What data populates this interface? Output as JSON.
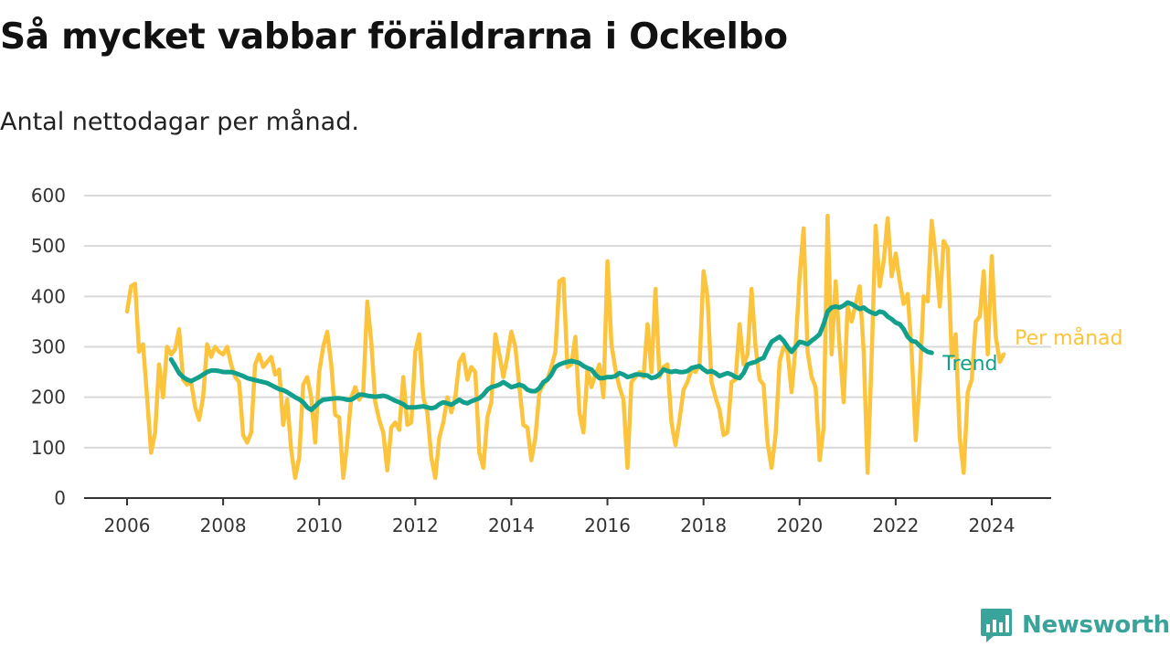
{
  "title": "Så mycket vabbar föräldrarna i Ockelbo",
  "subtitle": "Antal nettodagar per månad.",
  "brand": {
    "name": "Newsworthy",
    "icon": "newsworthy-chart-bubble-icon"
  },
  "colors": {
    "monthly": "#fcc33c",
    "trend": "#12a08c",
    "grid": "#d9d9d9",
    "axis": "#333333",
    "brand": "#3aa39a"
  },
  "chart_data": {
    "type": "line",
    "title": "Så mycket vabbar föräldrarna i Ockelbo",
    "subtitle": "Antal nettodagar per månad.",
    "xlabel": "",
    "ylabel": "",
    "x_start": "2006-01",
    "x_step": "month",
    "xlim": [
      2005,
      2025.2
    ],
    "ylim": [
      0,
      600
    ],
    "yticks": [
      0,
      100,
      200,
      300,
      400,
      500,
      600
    ],
    "xticks": [
      2006,
      2008,
      2010,
      2012,
      2014,
      2016,
      2018,
      2020,
      2022,
      2024
    ],
    "grid": "horizontal",
    "legend": "direct labels at right end of lines",
    "series": [
      {
        "name": "Per månad",
        "color": "#fcc33c",
        "values": [
          370,
          420,
          425,
          290,
          305,
          200,
          90,
          130,
          265,
          200,
          300,
          285,
          295,
          335,
          235,
          225,
          230,
          180,
          155,
          200,
          305,
          280,
          300,
          290,
          285,
          300,
          265,
          240,
          230,
          125,
          110,
          130,
          265,
          285,
          260,
          270,
          280,
          245,
          255,
          145,
          195,
          95,
          40,
          80,
          225,
          240,
          200,
          110,
          250,
          300,
          330,
          265,
          165,
          160,
          40,
          110,
          200,
          220,
          195,
          210,
          390,
          310,
          190,
          155,
          130,
          55,
          140,
          150,
          135,
          240,
          145,
          150,
          290,
          325,
          200,
          170,
          80,
          40,
          120,
          150,
          200,
          170,
          200,
          270,
          285,
          235,
          260,
          250,
          90,
          60,
          160,
          190,
          325,
          285,
          240,
          280,
          330,
          300,
          220,
          145,
          140,
          75,
          120,
          210,
          225,
          235,
          260,
          290,
          430,
          435,
          260,
          265,
          320,
          170,
          130,
          255,
          220,
          245,
          265,
          200,
          470,
          305,
          255,
          220,
          195,
          60,
          230,
          240,
          250,
          240,
          345,
          250,
          415,
          240,
          260,
          265,
          150,
          105,
          155,
          215,
          230,
          255,
          250,
          265,
          450,
          400,
          230,
          200,
          175,
          125,
          130,
          230,
          235,
          345,
          265,
          285,
          415,
          300,
          235,
          225,
          110,
          60,
          125,
          270,
          300,
          290,
          210,
          300,
          440,
          535,
          290,
          240,
          220,
          75,
          140,
          560,
          285,
          430,
          300,
          190,
          380,
          350,
          385,
          420,
          290,
          50,
          280,
          540,
          420,
          470,
          555,
          440,
          485,
          430,
          385,
          405,
          290,
          115,
          235,
          400,
          390,
          550,
          480,
          380,
          510,
          495,
          280,
          325,
          120,
          50,
          210,
          235,
          350,
          360,
          450,
          285,
          480,
          320,
          270,
          285
        ]
      },
      {
        "name": "Trend",
        "color": "#12a08c",
        "start_index": 11,
        "values": [
          275,
          262,
          248,
          240,
          235,
          232,
          236,
          240,
          245,
          250,
          253,
          253,
          252,
          250,
          250,
          250,
          248,
          245,
          242,
          238,
          236,
          234,
          232,
          230,
          228,
          224,
          220,
          216,
          214,
          210,
          205,
          200,
          196,
          190,
          180,
          175,
          182,
          190,
          195,
          196,
          197,
          198,
          198,
          197,
          195,
          195,
          200,
          205,
          205,
          203,
          202,
          201,
          202,
          203,
          201,
          197,
          193,
          190,
          186,
          180,
          180,
          180,
          181,
          182,
          180,
          178,
          180,
          186,
          190,
          188,
          185,
          190,
          195,
          190,
          188,
          192,
          195,
          198,
          205,
          215,
          220,
          222,
          225,
          230,
          225,
          220,
          222,
          225,
          222,
          215,
          212,
          212,
          218,
          230,
          235,
          245,
          260,
          265,
          268,
          270,
          272,
          270,
          268,
          262,
          258,
          255,
          245,
          238,
          238,
          240,
          240,
          242,
          248,
          245,
          240,
          242,
          245,
          245,
          244,
          243,
          238,
          240,
          245,
          255,
          252,
          250,
          252,
          250,
          250,
          252,
          258,
          260,
          262,
          255,
          250,
          252,
          248,
          242,
          245,
          248,
          245,
          240,
          238,
          248,
          265,
          268,
          270,
          275,
          278,
          295,
          310,
          315,
          320,
          312,
          300,
          290,
          300,
          310,
          308,
          305,
          312,
          318,
          325,
          345,
          370,
          378,
          380,
          378,
          382,
          388,
          385,
          380,
          375,
          378,
          372,
          368,
          365,
          370,
          368,
          360,
          355,
          348,
          345,
          335,
          320,
          312,
          310,
          302,
          295,
          290,
          288
        ]
      }
    ]
  }
}
